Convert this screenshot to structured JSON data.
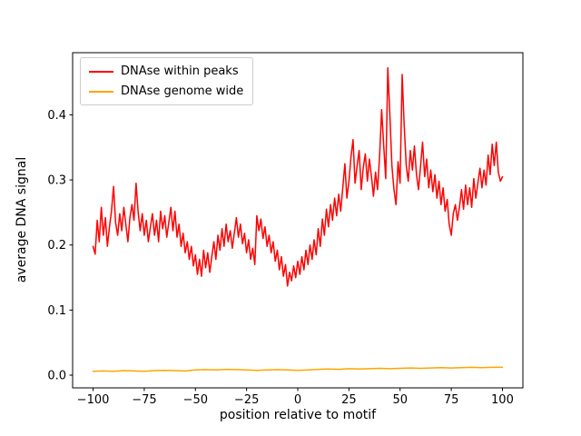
{
  "figure": {
    "background": "#ffffff"
  },
  "chart_data": {
    "type": "line",
    "title": "",
    "xlabel": "position relative to motif",
    "ylabel": "average DNA signal",
    "grid": false,
    "legend_position": "upper left",
    "xlim": [
      -110,
      110
    ],
    "ylim": [
      -0.0195,
      0.4955
    ],
    "x_ticks": {
      "values": [
        -100,
        -75,
        -50,
        -25,
        0,
        25,
        50,
        75,
        100
      ],
      "labels": [
        "−100",
        "−75",
        "−50",
        "−25",
        "0",
        "25",
        "50",
        "75",
        "100"
      ]
    },
    "y_ticks": {
      "values": [
        0.0,
        0.1,
        0.2,
        0.3,
        0.4
      ],
      "labels": [
        "0.0",
        "0.1",
        "0.2",
        "0.3",
        "0.4"
      ]
    },
    "series": [
      {
        "name": "DNAse within peaks",
        "color": "#ff0000",
        "x_start": -100,
        "x_step": 1,
        "values": [
          0.198,
          0.186,
          0.238,
          0.205,
          0.258,
          0.215,
          0.242,
          0.198,
          0.228,
          0.252,
          0.29,
          0.235,
          0.215,
          0.248,
          0.222,
          0.258,
          0.232,
          0.205,
          0.242,
          0.262,
          0.238,
          0.295,
          0.252,
          0.222,
          0.248,
          0.215,
          0.238,
          0.205,
          0.228,
          0.248,
          0.215,
          0.238,
          0.205,
          0.252,
          0.225,
          0.245,
          0.212,
          0.235,
          0.258,
          0.222,
          0.252,
          0.212,
          0.232,
          0.198,
          0.218,
          0.188,
          0.205,
          0.178,
          0.198,
          0.168,
          0.185,
          0.155,
          0.178,
          0.152,
          0.192,
          0.165,
          0.188,
          0.158,
          0.182,
          0.205,
          0.178,
          0.215,
          0.192,
          0.225,
          0.198,
          0.232,
          0.205,
          0.222,
          0.195,
          0.218,
          0.242,
          0.212,
          0.232,
          0.202,
          0.218,
          0.188,
          0.208,
          0.178,
          0.195,
          0.17,
          0.245,
          0.222,
          0.24,
          0.21,
          0.228,
          0.198,
          0.215,
          0.188,
          0.205,
          0.175,
          0.192,
          0.162,
          0.182,
          0.152,
          0.17,
          0.137,
          0.158,
          0.145,
          0.168,
          0.15,
          0.175,
          0.155,
          0.182,
          0.162,
          0.192,
          0.17,
          0.2,
          0.178,
          0.208,
          0.185,
          0.225,
          0.198,
          0.24,
          0.215,
          0.255,
          0.228,
          0.262,
          0.238,
          0.272,
          0.245,
          0.278,
          0.252,
          0.288,
          0.325,
          0.272,
          0.298,
          0.335,
          0.362,
          0.295,
          0.322,
          0.345,
          0.285,
          0.318,
          0.34,
          0.298,
          0.332,
          0.305,
          0.275,
          0.312,
          0.285,
          0.338,
          0.408,
          0.352,
          0.302,
          0.472,
          0.398,
          0.322,
          0.285,
          0.262,
          0.328,
          0.295,
          0.462,
          0.385,
          0.322,
          0.298,
          0.345,
          0.315,
          0.352,
          0.308,
          0.285,
          0.322,
          0.358,
          0.305,
          0.332,
          0.288,
          0.315,
          0.282,
          0.308,
          0.272,
          0.298,
          0.262,
          0.288,
          0.252,
          0.27,
          0.232,
          0.215,
          0.248,
          0.262,
          0.238,
          0.258,
          0.285,
          0.255,
          0.292,
          0.262,
          0.288,
          0.258,
          0.302,
          0.272,
          0.295,
          0.318,
          0.288,
          0.315,
          0.292,
          0.338,
          0.308,
          0.355,
          0.322,
          0.358,
          0.312,
          0.298,
          0.305
        ]
      },
      {
        "name": "DNAse genome wide",
        "color": "#ffa500",
        "x_start": -100,
        "x_step": 5,
        "values": [
          0.006,
          0.0065,
          0.006,
          0.007,
          0.0065,
          0.006,
          0.007,
          0.0075,
          0.007,
          0.0065,
          0.008,
          0.0085,
          0.008,
          0.009,
          0.0085,
          0.008,
          0.0075,
          0.008,
          0.0085,
          0.008,
          0.0075,
          0.008,
          0.009,
          0.0095,
          0.009,
          0.01,
          0.0095,
          0.01,
          0.0105,
          0.01,
          0.0105,
          0.011,
          0.0105,
          0.011,
          0.0115,
          0.011,
          0.0115,
          0.012,
          0.0115,
          0.012,
          0.012
        ]
      }
    ]
  }
}
